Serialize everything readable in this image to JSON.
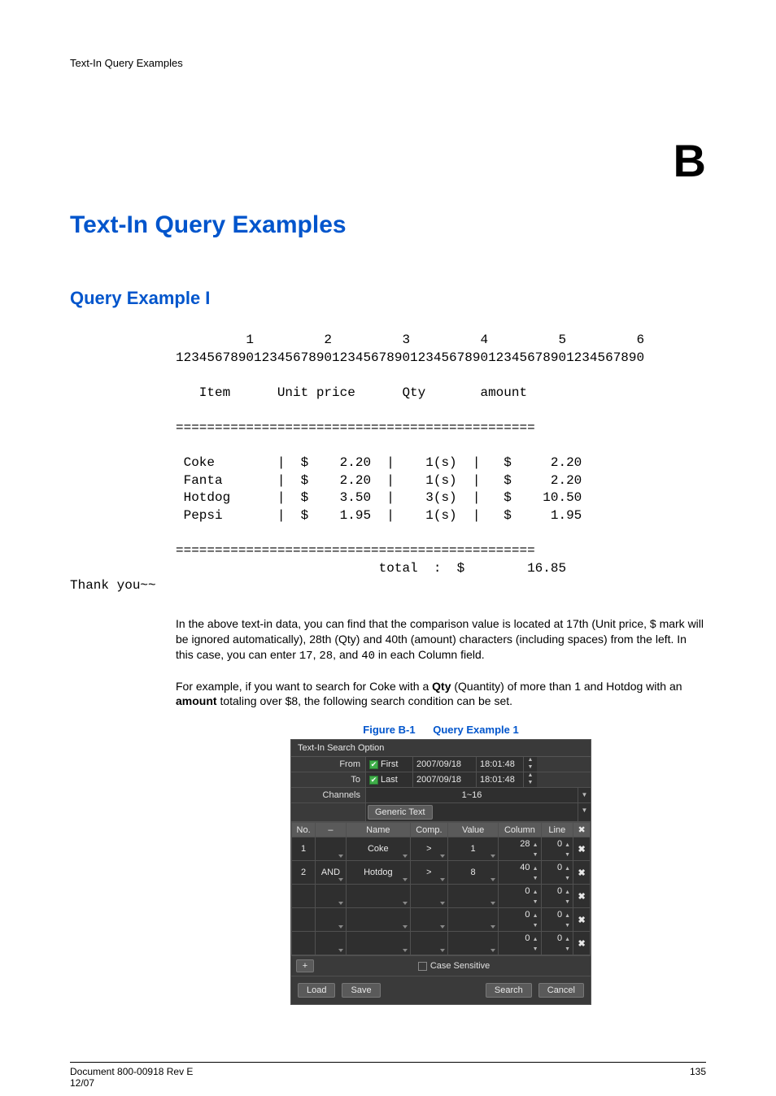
{
  "running_header": "Text-In Query Examples",
  "appendix_letter": "B",
  "chapter_title": "Text-In Query Examples",
  "section_title": "Query Example I",
  "receipt": {
    "ruler_tens": "         1         2         3         4         5         6",
    "ruler_units": "123456789012345678901234567890123456789012345678901234567890",
    "header": "   Item      Unit price      Qty       amount",
    "sep": "==============================================",
    "rows": [
      " Coke        |  $    2.20  |    1(s)  |   $     2.20",
      " Fanta       |  $    2.20  |    1(s)  |   $     2.20",
      " Hotdog      |  $    3.50  |    3(s)  |   $    10.50",
      " Pepsi       |  $    1.95  |    1(s)  |   $     1.95"
    ],
    "total_line": "                          total  :  $        16.85",
    "thanks": "Thank you~~"
  },
  "para1_a": "In the above text-in data, you can find that the comparison value is located at 17th (Unit price, $ mark will be ignored automatically), 28th (Qty) and 40th (amount) characters (including spaces) from the left. In this case, you can enter ",
  "para1_code1": "17",
  "para1_b": ", ",
  "para1_code2": "28",
  "para1_c": ", and ",
  "para1_code3": "40",
  "para1_d": " in each Column field.",
  "para2_a": "For example, if you want to search for Coke with a ",
  "para2_bold1": "Qty",
  "para2_b": " (Quantity) of more than 1 and Hotdog with an ",
  "para2_bold2": "amount",
  "para2_c": " totaling over $8, the following search condition can be set.",
  "figure": {
    "label": "Figure B-1",
    "title": "Query Example 1"
  },
  "dialog": {
    "title": "Text-In Search Option",
    "from_label": "From",
    "to_label": "To",
    "channels_label": "Channels",
    "first": "First",
    "last": "Last",
    "from_date": "2007/09/18",
    "from_time": "18:01:48",
    "to_date": "2007/09/18",
    "to_time": "18:01:48",
    "channels_value": "1~16",
    "device_value": "Generic Text",
    "columns": [
      "No.",
      "–",
      "Name",
      "Comp.",
      "Value",
      "Column",
      "Line",
      "✖"
    ],
    "rows": [
      {
        "no": "1",
        "logic": "",
        "name": "Coke",
        "comp": ">",
        "value": "1",
        "column": "28",
        "line": "0"
      },
      {
        "no": "2",
        "logic": "AND",
        "name": "Hotdog",
        "comp": ">",
        "value": "8",
        "column": "40",
        "line": "0"
      },
      {
        "no": "",
        "logic": "",
        "name": "",
        "comp": "",
        "value": "",
        "column": "0",
        "line": "0"
      },
      {
        "no": "",
        "logic": "",
        "name": "",
        "comp": "",
        "value": "",
        "column": "0",
        "line": "0"
      },
      {
        "no": "",
        "logic": "",
        "name": "",
        "comp": "",
        "value": "",
        "column": "0",
        "line": "0"
      }
    ],
    "plus": "+",
    "case_sensitive": "Case Sensitive",
    "buttons": {
      "load": "Load",
      "save": "Save",
      "search": "Search",
      "cancel": "Cancel"
    }
  },
  "footer": {
    "left1": "Document 800-00918 Rev E",
    "left2": "12/07",
    "page": "135"
  },
  "colors": {
    "accent_blue": "#0055cc",
    "dialog_bg": "#3a3a3a",
    "dialog_field_bg": "#2f2f2f",
    "dialog_button_bg": "#5a5a5a",
    "dialog_border": "#505050",
    "check_green": "#3fae49",
    "x_icon": "#9fbfdc"
  }
}
